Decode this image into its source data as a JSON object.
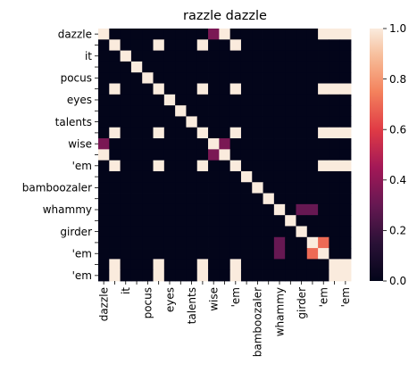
{
  "chart_data": {
    "type": "heatmap",
    "title": "razzle dazzle",
    "rows": [
      "dazzle",
      "",
      "it",
      "",
      "pocus",
      "",
      "eyes",
      "",
      "talents",
      "",
      "wise",
      "",
      "'em",
      "",
      "bamboozaler",
      "",
      "whammy",
      "",
      "girder",
      "",
      "'em",
      "",
      "'em"
    ],
    "cols": [
      "dazzle",
      "",
      "it",
      "",
      "pocus",
      "",
      "eyes",
      "",
      "talents",
      "",
      "wise",
      "",
      "'em",
      "",
      "bamboozaler",
      "",
      "whammy",
      "",
      "girder",
      "",
      "'em",
      "",
      "'em"
    ],
    "values": [
      [
        1,
        0,
        0,
        0,
        0,
        0,
        0,
        0,
        0,
        0,
        0.35,
        1,
        0,
        0,
        0,
        0,
        0,
        0,
        0,
        0,
        1,
        1,
        1
      ],
      [
        0,
        1,
        0,
        0,
        0,
        1,
        0,
        0,
        0,
        1,
        0,
        0,
        1,
        0,
        0,
        0,
        0,
        0,
        0,
        0,
        0,
        0,
        0
      ],
      [
        0,
        0,
        1,
        0,
        0,
        0,
        0,
        0,
        0,
        0,
        0,
        0,
        0,
        0,
        0,
        0,
        0,
        0,
        0,
        0,
        0,
        0,
        0
      ],
      [
        0,
        0,
        0,
        1,
        0,
        0,
        0,
        0,
        0,
        0,
        0,
        0,
        0,
        0,
        0,
        0,
        0,
        0,
        0,
        0,
        0,
        0,
        0
      ],
      [
        0,
        0,
        0,
        0,
        1,
        0,
        0,
        0,
        0,
        0,
        0,
        0,
        0,
        0,
        0,
        0,
        0,
        0,
        0,
        0,
        0,
        0,
        0
      ],
      [
        0,
        1,
        0,
        0,
        0,
        1,
        0,
        0,
        0,
        1,
        0,
        0,
        1,
        0,
        0,
        0,
        0,
        0,
        0,
        0,
        1,
        1,
        1
      ],
      [
        0,
        0,
        0,
        0,
        0,
        0,
        1,
        0,
        0,
        0,
        0,
        0,
        0,
        0,
        0,
        0,
        0,
        0,
        0,
        0,
        0,
        0,
        0
      ],
      [
        0,
        0,
        0,
        0,
        0,
        0,
        0,
        1,
        0,
        0,
        0,
        0,
        0,
        0,
        0,
        0,
        0,
        0,
        0,
        0,
        0,
        0,
        0
      ],
      [
        0,
        0,
        0,
        0,
        0,
        0,
        0,
        0,
        1,
        0,
        0,
        0,
        0,
        0,
        0,
        0,
        0,
        0,
        0,
        0,
        0,
        0,
        0
      ],
      [
        0,
        1,
        0,
        0,
        0,
        1,
        0,
        0,
        0,
        1,
        0,
        0,
        1,
        0,
        0,
        0,
        0,
        0,
        0,
        0,
        1,
        1,
        1
      ],
      [
        0.35,
        0,
        0,
        0,
        0,
        0,
        0,
        0,
        0,
        0,
        1,
        0.35,
        0,
        0,
        0,
        0,
        0,
        0,
        0,
        0,
        0,
        0,
        0
      ],
      [
        1,
        0,
        0,
        0,
        0,
        0,
        0,
        0,
        0,
        0,
        0.35,
        1,
        0,
        0,
        0,
        0,
        0,
        0,
        0,
        0,
        0,
        0,
        0
      ],
      [
        0,
        1,
        0,
        0,
        0,
        1,
        0,
        0,
        0,
        1,
        0,
        0,
        1,
        0,
        0,
        0,
        0,
        0,
        0,
        0,
        1,
        1,
        1
      ],
      [
        0,
        0,
        0,
        0,
        0,
        0,
        0,
        0,
        0,
        0,
        0,
        0,
        0,
        1,
        0,
        0,
        0,
        0,
        0,
        0,
        0,
        0,
        0
      ],
      [
        0,
        0,
        0,
        0,
        0,
        0,
        0,
        0,
        0,
        0,
        0,
        0,
        0,
        0,
        1,
        0,
        0,
        0,
        0,
        0,
        0,
        0,
        0
      ],
      [
        0,
        0,
        0,
        0,
        0,
        0,
        0,
        0,
        0,
        0,
        0,
        0,
        0,
        0,
        0,
        1,
        0,
        0,
        0,
        0,
        0,
        0,
        0
      ],
      [
        0,
        0,
        0,
        0,
        0,
        0,
        0,
        0,
        0,
        0,
        0,
        0,
        0,
        0,
        0,
        0,
        1,
        0,
        0.3,
        0.3,
        0,
        0,
        0
      ],
      [
        0,
        0,
        0,
        0,
        0,
        0,
        0,
        0,
        0,
        0,
        0,
        0,
        0,
        0,
        0,
        0,
        0,
        1,
        0,
        0,
        0,
        0,
        0
      ],
      [
        0,
        0,
        0,
        0,
        0,
        0,
        0,
        0,
        0,
        0,
        0,
        0,
        0,
        0,
        0,
        0,
        0,
        0,
        1,
        0,
        0,
        0,
        0
      ],
      [
        0,
        0,
        0,
        0,
        0,
        0,
        0,
        0,
        0,
        0,
        0,
        0,
        0,
        0,
        0,
        0,
        0.3,
        0,
        0,
        1,
        0.7,
        0,
        0
      ],
      [
        0,
        0,
        0,
        0,
        0,
        0,
        0,
        0,
        0,
        0,
        0,
        0,
        0,
        0,
        0,
        0,
        0.3,
        0,
        0,
        0.7,
        1,
        0,
        0
      ],
      [
        0,
        1,
        0,
        0,
        0,
        1,
        0,
        0,
        0,
        1,
        0,
        0,
        1,
        0,
        0,
        0,
        0,
        0,
        0,
        0,
        0,
        1,
        1
      ],
      [
        0,
        1,
        0,
        0,
        0,
        1,
        0,
        0,
        0,
        1,
        0,
        0,
        1,
        0,
        0,
        0,
        0,
        0,
        0,
        0,
        0,
        1,
        1
      ]
    ],
    "vmin": 0,
    "vmax": 1,
    "colorbar_ticks": [
      "0.0",
      "0.2",
      "0.4",
      "0.6",
      "0.8",
      "1.0"
    ],
    "colormap": "rocket",
    "grid": false
  }
}
